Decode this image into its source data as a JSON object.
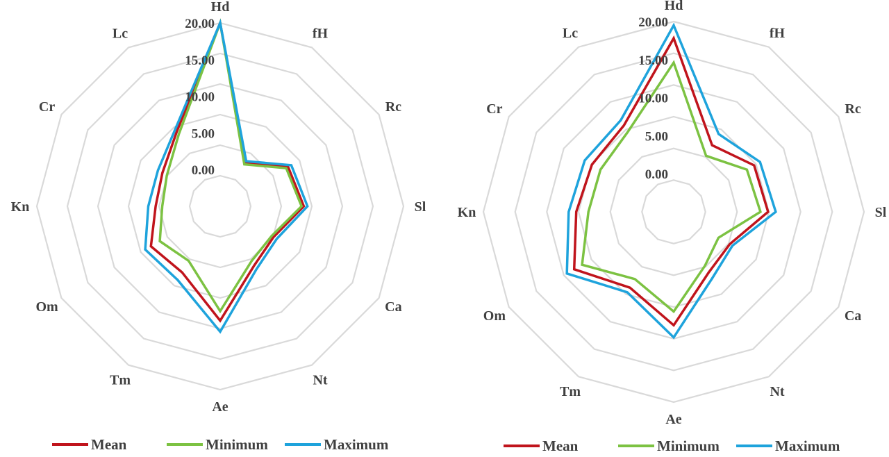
{
  "chart_data": [
    {
      "type": "radar",
      "categories": [
        "Hd",
        "fH",
        "Rc",
        "Sl",
        "Ca",
        "Nt",
        "Ae",
        "Tm",
        "Om",
        "Kn",
        "Cr",
        "Lc"
      ],
      "ticks": [
        "0.00",
        "5.00",
        "10.00",
        "15.00",
        "20.00"
      ],
      "rlim": [
        -5,
        20
      ],
      "grid": true,
      "legend_position": "bottom",
      "series": [
        {
          "name": "Mean",
          "color": "#c0141c",
          "values": [
            20,
            1.8,
            5.7,
            6.4,
            3.4,
            4.3,
            10.6,
            5.4,
            5.9,
            3.8,
            4.1,
            6.8
          ]
        },
        {
          "name": "Minimum",
          "color": "#7cc242",
          "values": [
            20,
            1.6,
            5.4,
            6.1,
            3.1,
            3.6,
            9.3,
            3.6,
            4.5,
            2.9,
            3.4,
            6.3
          ]
        },
        {
          "name": "Maximum",
          "color": "#1ea3dc",
          "values": [
            20,
            2.1,
            6.2,
            6.9,
            3.9,
            4.9,
            12.1,
            6.6,
            6.8,
            4.8,
            4.8,
            7.2
          ]
        }
      ]
    },
    {
      "type": "radar",
      "categories": [
        "Hd",
        "fH",
        "Rc",
        "Sl",
        "Ca",
        "Nt",
        "Ae",
        "Tm",
        "Om",
        "Kn",
        "Cr",
        "Lc"
      ],
      "ticks": [
        "0.00",
        "5.00",
        "10.00",
        "15.00",
        "20.00"
      ],
      "rlim": [
        -5,
        20
      ],
      "grid": true,
      "legend_position": "bottom",
      "series": [
        {
          "name": "Mean",
          "color": "#c0141c",
          "values": [
            17.8,
            5.1,
            7.2,
            7.4,
            3.5,
            4.2,
            9.9,
            6.5,
            10.1,
            7.8,
            7.4,
            8.1
          ]
        },
        {
          "name": "Minimum",
          "color": "#7cc242",
          "values": [
            14.6,
            3.5,
            6.1,
            6.4,
            1.8,
            3.2,
            8.1,
            5.2,
            8.9,
            6.2,
            6.1,
            7.1
          ]
        },
        {
          "name": "Maximum",
          "color": "#1ea3dc",
          "values": [
            19.5,
            6.8,
            8.1,
            8.4,
            3.9,
            5.1,
            11.5,
            7.2,
            11.2,
            8.8,
            8.5,
            8.9
          ]
        }
      ]
    }
  ]
}
